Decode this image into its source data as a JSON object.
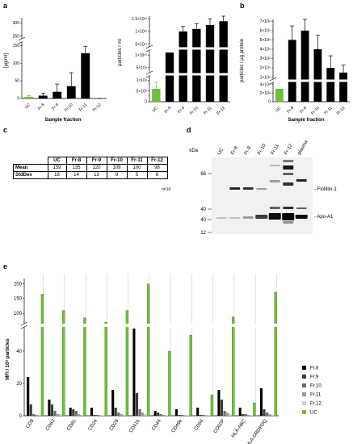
{
  "panels": {
    "a": "a",
    "b": "b",
    "c": "c",
    "d": "d",
    "e": "e"
  },
  "colors": {
    "uc_green": "#6fbf3b",
    "bar_black": "#000000"
  },
  "chart_data": [
    {
      "id": "a1",
      "type": "bar",
      "ylabel": "[µg/ml]",
      "xlabel": "Sample fraction",
      "categories": [
        "UC",
        "Fr-8",
        "Fr-9",
        "Fr-10",
        "Fr-11",
        "Fr-12"
      ],
      "values": [
        5,
        8,
        19,
        35,
        128,
        178
      ],
      "errors": [
        3,
        7,
        22,
        38,
        20,
        58
      ],
      "colors": [
        "#6fbf3b",
        "#000",
        "#000",
        "#000",
        "#000",
        "#000"
      ],
      "yticks_lower": [
        "0",
        "50",
        "100",
        "150"
      ],
      "yticks_upper": [
        "250",
        "300"
      ],
      "axis_break": [
        160,
        240
      ]
    },
    {
      "id": "a2",
      "type": "bar",
      "ylabel": "particles / ml",
      "categories": [
        "UC",
        "Fr-8",
        "Fr-9",
        "Fr-10",
        "Fr-11",
        "Fr-12"
      ],
      "values": [
        600000000,
        11000000000,
        1000000000000,
        1100000000000,
        1250000000000,
        1400000000000
      ],
      "errors": [
        300000000,
        4000000000,
        200000000000,
        200000000000,
        250000000000,
        350000000000
      ],
      "colors": [
        "#6fbf3b",
        "#000",
        "#000",
        "#000",
        "#000",
        "#000"
      ],
      "yticks_lower": [
        "0",
        "5×10⁸",
        "1×10⁹"
      ],
      "yticks_middle": [
        "5×10⁹",
        "1×10¹⁰"
      ],
      "yticks_upper": [
        "5×10¹¹",
        "1×10¹²",
        "1.5×10¹²"
      ]
    },
    {
      "id": "b",
      "type": "bar",
      "ylabel": "particles / µg protein",
      "xlabel": "Sample fraction",
      "categories": [
        "UC",
        "Fr-8",
        "Fr-9",
        "Fr-10",
        "Fr-11",
        "Fr-12"
      ],
      "values": [
        300000000,
        5000000000,
        6000000000,
        4000000000,
        2000000000,
        1500000000
      ],
      "errors": [
        200000000,
        1500000000,
        4500000000,
        1500000000,
        1300000000,
        800000000
      ],
      "colors": [
        "#6fbf3b",
        "#000",
        "#000",
        "#000",
        "#000",
        "#000"
      ],
      "yticks_lower": [
        "0",
        "2×10⁸",
        "4×10⁸"
      ],
      "yticks_upper": [
        "1×10⁹",
        "2×10⁹",
        "3×10⁹",
        "4×10⁹",
        "5×10⁹",
        "6×10⁹",
        "7×10⁹"
      ]
    },
    {
      "id": "e",
      "type": "bar",
      "ylabel": "MFI / 10⁸ particles",
      "categories": [
        "CD9",
        "CD63",
        "CD81",
        "CD24",
        "CD29",
        "CD41b",
        "CD44",
        "CD49e",
        "CD56",
        "CD62P",
        "HLA-ABC",
        "HLA-DRDPDQ"
      ],
      "yticks_lower": [
        "0",
        "20",
        "40"
      ],
      "yticks_upper": [
        "100",
        "150",
        "200"
      ],
      "axis_break": [
        55,
        65
      ],
      "series": [
        {
          "name": "Fr.8",
          "color": "#000000",
          "values": [
            24,
            10,
            5,
            5,
            16,
            54,
            3,
            4,
            5,
            16,
            5,
            17
          ]
        },
        {
          "name": "Fr.9",
          "color": "#3a3a3a",
          "values": [
            7,
            7,
            4,
            0.5,
            5,
            14,
            2,
            0.5,
            0.5,
            10,
            1,
            4
          ]
        },
        {
          "name": "Fr.10",
          "color": "#6b6b6b",
          "values": [
            1,
            3,
            3,
            0.5,
            2,
            4,
            1,
            0.5,
            0.5,
            3,
            1,
            2
          ]
        },
        {
          "name": "Fr.11",
          "color": "#9a9a9a",
          "values": [
            0.5,
            1,
            1,
            0.3,
            1,
            2,
            0.5,
            0.3,
            0.3,
            2,
            0.5,
            1
          ]
        },
        {
          "name": "Fr.12",
          "color": "#cfcfcf",
          "values": [
            0.5,
            1,
            0.5,
            0.3,
            0.5,
            1,
            0.3,
            0.3,
            0.3,
            1,
            0.3,
            0.5
          ]
        },
        {
          "name": "UC",
          "color": "#6fbf3b",
          "values": [
            165,
            110,
            85,
            70,
            110,
            200,
            40,
            50,
            13,
            88,
            8,
            172
          ]
        }
      ]
    }
  ],
  "table": {
    "headers": [
      "",
      "UC",
      "Fr-8",
      "Fr-9",
      "Fr-10",
      "Fr-11",
      "Fr-12"
    ],
    "rows": [
      [
        "Mean",
        "159",
        "135",
        "120",
        "109",
        "100",
        "98"
      ],
      [
        "StdDev",
        "18",
        "14",
        "13",
        "9",
        "5",
        "8"
      ]
    ],
    "note": "n=10"
  },
  "blot": {
    "kda_label": "kDa",
    "lanes": [
      "UC",
      "Fr-8",
      "Fr-9",
      "Fr-10",
      "Fr-11",
      "Fr-12",
      "plasma"
    ],
    "markers": [
      "66",
      "40",
      "40",
      "12"
    ],
    "band_labels": [
      "- Flotillin-1",
      "- Apo-A1"
    ]
  }
}
